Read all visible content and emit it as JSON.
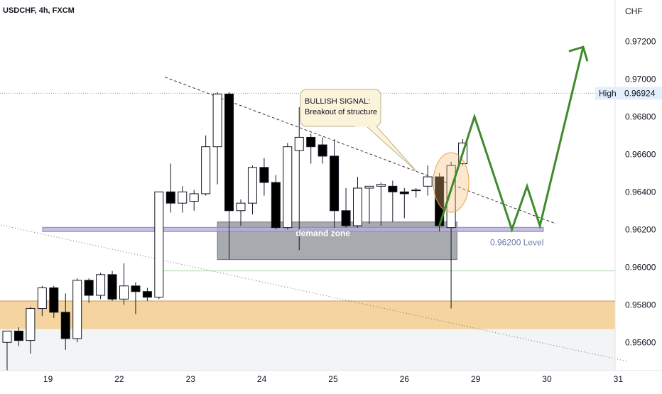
{
  "chart_data": {
    "type": "candlestick",
    "symbol_label": "USDCHF, 4h, FXCM",
    "currency_label": "CHF",
    "ylim": [
      0.9545,
      0.9742
    ],
    "y_ticks": [
      "0.97200",
      "0.97000",
      "0.96800",
      "0.96600",
      "0.96400",
      "0.96200",
      "0.96000",
      "0.95800",
      "0.95600"
    ],
    "y_tick_values": [
      0.972,
      0.97,
      0.968,
      0.966,
      0.964,
      0.962,
      0.96,
      0.958,
      0.956
    ],
    "x_ticks": [
      "19",
      "22",
      "23",
      "24",
      "25",
      "26",
      "29",
      "30",
      "31"
    ],
    "x_tick_index": [
      3.5,
      9.6,
      15.7,
      21.8,
      27.9,
      34.0,
      40.1,
      46.2,
      52.3
    ],
    "high": {
      "label": "High",
      "value_label": "0.96924",
      "value": 0.96924
    },
    "level": {
      "label": "0.96200 Level",
      "value": 0.962
    },
    "demand_zone": {
      "label": "demand zone",
      "top": 0.9624,
      "bottom": 0.9604,
      "from_index": 18,
      "to_index": 38.5
    },
    "support_band": {
      "top": 0.9582,
      "bottom": 0.9567
    },
    "green_line_value": 0.9598,
    "annotation": {
      "line1": "BULLISH SIGNAL:",
      "line2": "Breakout of structure"
    },
    "candles": [
      [
        0.956,
        0.9566,
        0.9545,
        0.9566
      ],
      [
        0.9566,
        0.9568,
        0.9558,
        0.9561
      ],
      [
        0.9561,
        0.9579,
        0.9554,
        0.9578
      ],
      [
        0.9578,
        0.959,
        0.9574,
        0.9589
      ],
      [
        0.9589,
        0.959,
        0.9573,
        0.9576
      ],
      [
        0.9576,
        0.9586,
        0.9556,
        0.9562
      ],
      [
        0.9562,
        0.9594,
        0.956,
        0.9593
      ],
      [
        0.9593,
        0.9594,
        0.9581,
        0.9585
      ],
      [
        0.9585,
        0.9597,
        0.9583,
        0.9596
      ],
      [
        0.9596,
        0.9598,
        0.9582,
        0.9583
      ],
      [
        0.9583,
        0.9602,
        0.958,
        0.959
      ],
      [
        0.959,
        0.9592,
        0.9575,
        0.9587
      ],
      [
        0.9587,
        0.9589,
        0.9582,
        0.9584
      ],
      [
        0.9584,
        0.964,
        0.9583,
        0.964
      ],
      [
        0.964,
        0.9655,
        0.9629,
        0.9634
      ],
      [
        0.9634,
        0.9643,
        0.9629,
        0.964
      ],
      [
        0.9635,
        0.9641,
        0.963,
        0.9639
      ],
      [
        0.9639,
        0.967,
        0.9638,
        0.9664
      ],
      [
        0.9664,
        0.9693,
        0.9644,
        0.9692
      ],
      [
        0.9692,
        0.9693,
        0.9604,
        0.963
      ],
      [
        0.963,
        0.9636,
        0.9622,
        0.9634
      ],
      [
        0.9634,
        0.9654,
        0.9628,
        0.9653
      ],
      [
        0.9653,
        0.9658,
        0.9638,
        0.9645
      ],
      [
        0.9645,
        0.9649,
        0.962,
        0.9621
      ],
      [
        0.9621,
        0.9666,
        0.962,
        0.9664
      ],
      [
        0.9662,
        0.9685,
        0.9609,
        0.9669
      ],
      [
        0.9669,
        0.9671,
        0.9655,
        0.9664
      ],
      [
        0.9665,
        0.9669,
        0.9655,
        0.9659
      ],
      [
        0.9659,
        0.9668,
        0.9621,
        0.963
      ],
      [
        0.963,
        0.9642,
        0.9621,
        0.9622
      ],
      [
        0.9622,
        0.9648,
        0.9621,
        0.9642
      ],
      [
        0.9642,
        0.9643,
        0.9623,
        0.9643
      ],
      [
        0.9643,
        0.9645,
        0.9622,
        0.9644
      ],
      [
        0.9643,
        0.9646,
        0.9624,
        0.964
      ],
      [
        0.964,
        0.9642,
        0.9626,
        0.9639
      ],
      [
        0.9641,
        0.9642,
        0.9637,
        0.9641
      ],
      [
        0.9643,
        0.9654,
        0.9638,
        0.9648
      ],
      [
        0.9648,
        0.965,
        0.9619,
        0.9622
      ],
      [
        0.9621,
        0.9656,
        0.9578,
        0.9654
      ],
      [
        0.9655,
        0.9668,
        0.9654,
        0.9666
      ]
    ],
    "projection_path": [
      [
        37.0,
        0.9622
      ],
      [
        40.0,
        0.968
      ],
      [
        43.2,
        0.962
      ],
      [
        44.5,
        0.9643
      ],
      [
        45.6,
        0.9622
      ],
      [
        49.3,
        0.9717
      ]
    ],
    "trendline_descending": [
      [
        13.5,
        0.9701
      ],
      [
        47.0,
        0.9623
      ]
    ],
    "trendline_long": [
      [
        -1.0,
        0.9623
      ],
      [
        53.0,
        0.955
      ]
    ],
    "colors": {
      "bull_body": "#ffffff",
      "bear_body": "#000000",
      "candle_edge": "#131722",
      "demand_zone": "#8a8d94",
      "support_band": "#f5cc8e",
      "level_band": "#b8aedc",
      "projection": "#3f8a2b",
      "high_line": "#9598a1",
      "green_line": "#a3d9a0",
      "circle": "#f5b975",
      "axis_text": "#131722",
      "background": "#ffffff"
    }
  }
}
